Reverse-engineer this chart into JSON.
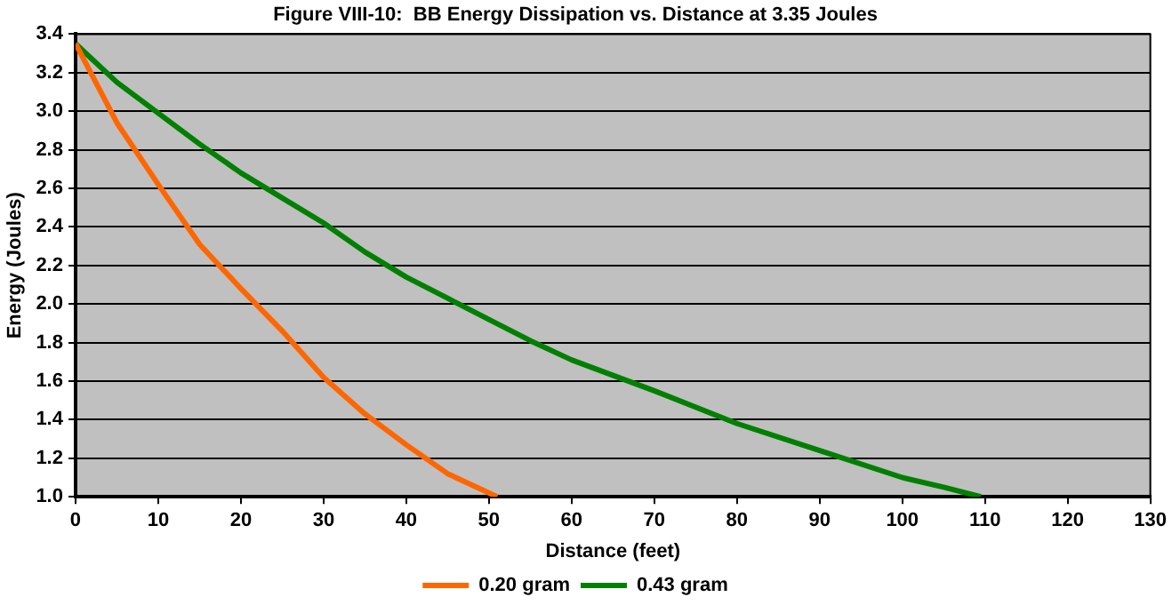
{
  "chart_data": {
    "type": "line",
    "title": "Figure VIII-10:  BB Energy Dissipation vs. Distance at 3.35 Joules",
    "xlabel": "Distance (feet)",
    "ylabel": "Energy (Joules)",
    "xlim": [
      0,
      130
    ],
    "xticks": [
      0,
      10,
      20,
      30,
      40,
      50,
      60,
      70,
      80,
      90,
      100,
      110,
      120,
      130
    ],
    "ylim": [
      1.0,
      3.4
    ],
    "yticks": [
      {
        "value": 1.0,
        "label": "1.0"
      },
      {
        "value": 1.2,
        "label": "1.2"
      },
      {
        "value": 1.4,
        "label": "1.4"
      },
      {
        "value": 1.6,
        "label": "1.6"
      },
      {
        "value": 1.8,
        "label": "1.8"
      },
      {
        "value": 2.0,
        "label": "2.0"
      },
      {
        "value": 2.2,
        "label": "2.2"
      },
      {
        "value": 2.4,
        "label": "2.4"
      },
      {
        "value": 2.6,
        "label": "2.6"
      },
      {
        "value": 2.8,
        "label": "2.8"
      },
      {
        "value": 3.0,
        "label": "3.0"
      },
      {
        "value": 3.2,
        "label": "3.2"
      },
      {
        "value": 3.4,
        "label": "3.4"
      }
    ],
    "grid": "y",
    "legend": "bottom",
    "marker": "none",
    "line_style": "solid",
    "series": [
      {
        "name": "0.20 gram",
        "color": "#ff6600",
        "x": [
          0,
          5,
          10,
          15,
          20,
          25,
          30,
          35,
          40,
          45,
          51
        ],
        "values": [
          3.35,
          2.94,
          2.62,
          2.31,
          2.08,
          1.86,
          1.62,
          1.43,
          1.27,
          1.12,
          1.0
        ]
      },
      {
        "name": "0.43 gram",
        "color": "#008000",
        "x": [
          0,
          5,
          10,
          15,
          20,
          25,
          30,
          35,
          40,
          45,
          50,
          55,
          60,
          70,
          80,
          90,
          100,
          105,
          109.5
        ],
        "values": [
          3.35,
          3.15,
          2.99,
          2.83,
          2.68,
          2.55,
          2.42,
          2.27,
          2.14,
          2.03,
          1.92,
          1.81,
          1.71,
          1.55,
          1.38,
          1.24,
          1.1,
          1.05,
          1.0
        ]
      }
    ]
  }
}
